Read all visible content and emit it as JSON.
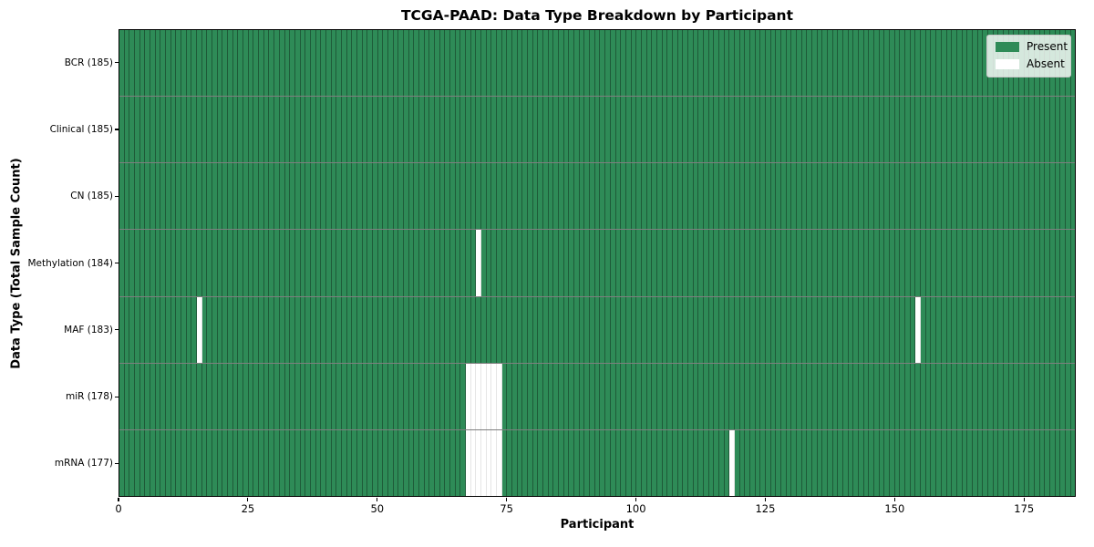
{
  "chart_data": {
    "type": "heatmap",
    "title": "TCGA-PAAD: Data Type Breakdown by Participant",
    "xlabel": "Participant",
    "ylabel": "Data Type (Total Sample Count)",
    "n_participants": 185,
    "xlim": [
      0,
      185
    ],
    "x_ticks": [
      0,
      25,
      50,
      75,
      100,
      125,
      150,
      175
    ],
    "grid": false,
    "legend_position": "upper right",
    "legend": [
      {
        "label": "Present",
        "color": "#2e8b57"
      },
      {
        "label": "Absent",
        "color": "#ffffff"
      }
    ],
    "rows": [
      {
        "label": "BCR (185)",
        "data_type": "BCR",
        "total": 185,
        "missing_participants": []
      },
      {
        "label": "Clinical (185)",
        "data_type": "Clinical",
        "total": 185,
        "missing_participants": []
      },
      {
        "label": "CN (185)",
        "data_type": "CN",
        "total": 185,
        "missing_participants": []
      },
      {
        "label": "Methylation (184)",
        "data_type": "Methylation",
        "total": 184,
        "missing_participants": [
          69
        ]
      },
      {
        "label": "MAF (183)",
        "data_type": "MAF",
        "total": 183,
        "missing_participants": [
          15,
          154
        ]
      },
      {
        "label": "miR (178)",
        "data_type": "miR",
        "total": 178,
        "missing_participants": [
          67,
          68,
          69,
          70,
          71,
          72,
          73
        ]
      },
      {
        "label": "mRNA (177)",
        "data_type": "mRNA",
        "total": 177,
        "missing_participants": [
          67,
          68,
          69,
          70,
          71,
          72,
          73,
          118
        ]
      }
    ]
  }
}
